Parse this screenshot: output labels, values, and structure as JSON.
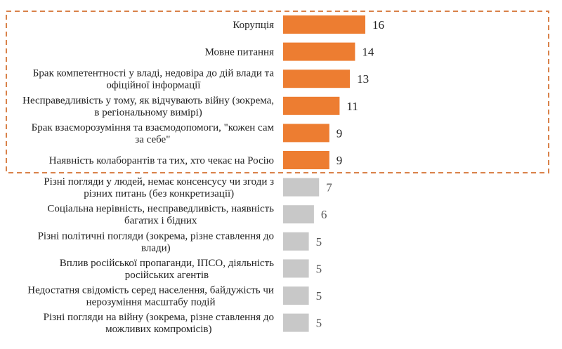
{
  "chart_data": {
    "type": "bar",
    "orientation": "horizontal",
    "title": "",
    "xlabel": "",
    "ylabel": "",
    "xlim": [
      0,
      16
    ],
    "grid": false,
    "legend": "none",
    "categories": [
      [
        "Корупція"
      ],
      [
        "Мовне питання"
      ],
      [
        "Брак компетентності у владі, недовіра до дій влади та",
        "офіційної інформації"
      ],
      [
        "Несправедливість у тому, як відчувають війну (зокрема,",
        "в регіональному вимірі)"
      ],
      [
        "Брак взаєморозуміння та взаємодопомоги, \"кожен сам",
        "за себе\""
      ],
      [
        "Наявність колаборантів та тих, хто чекає на Росію"
      ],
      [
        "Різні погляди у людей, немає консенсусу чи згоди з",
        "різних питань (без конкретизації)"
      ],
      [
        "Соціальна нерівність, несправедливість, наявність",
        "багатих і бідних"
      ],
      [
        "Різні політичні погляди (зокрема, різне ставлення до",
        "влади)"
      ],
      [
        "Вплив російської пропаганди, ІПСО, діяльність",
        "російських агентів"
      ],
      [
        "Недостатня свідомість серед населення,  байдужість чи",
        "нерозуміння масштабу подій"
      ],
      [
        "Різні погляди на війну (зокрема, різне ставлення до",
        "можливих компромісів)"
      ]
    ],
    "values": [
      16,
      14,
      13,
      11,
      9,
      9,
      7,
      6,
      5,
      5,
      5,
      5
    ],
    "highlighted_count": 6,
    "colors": {
      "highlight": "#ED7D31",
      "other": "#C8C8C8",
      "frame": "#D9824A"
    }
  }
}
